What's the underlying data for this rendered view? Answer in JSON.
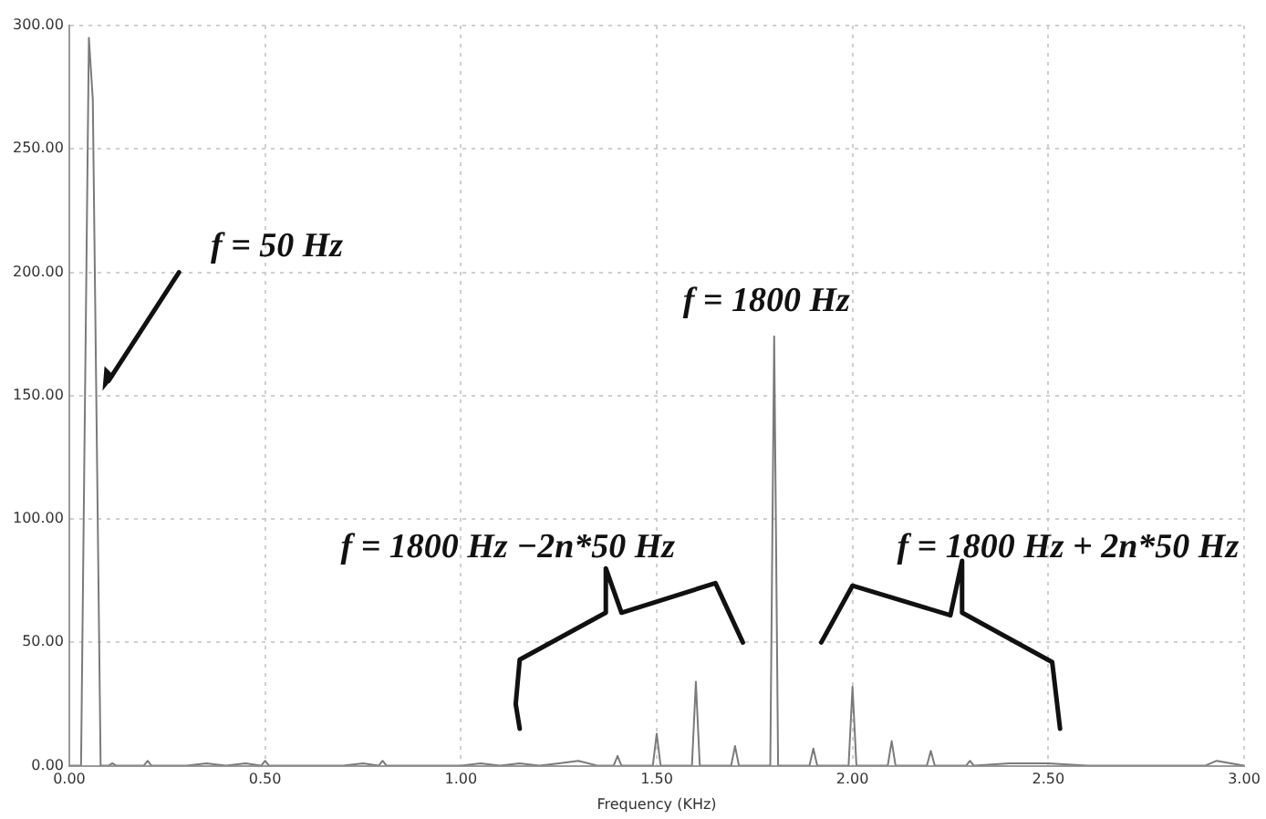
{
  "chart_data": {
    "type": "line",
    "xlabel": "Frequency (KHz)",
    "x": [
      0,
      0.03,
      0.05,
      0.06,
      0.08,
      0.1,
      0.11,
      0.12,
      0.19,
      0.2,
      0.21,
      0.3,
      0.35,
      0.4,
      0.45,
      0.49,
      0.5,
      0.51,
      0.6,
      0.7,
      0.75,
      0.79,
      0.8,
      0.81,
      0.85,
      0.9,
      1.0,
      1.05,
      1.1,
      1.15,
      1.2,
      1.25,
      1.3,
      1.35,
      1.39,
      1.4,
      1.41,
      1.44,
      1.49,
      1.5,
      1.51,
      1.55,
      1.59,
      1.6,
      1.61,
      1.65,
      1.69,
      1.7,
      1.71,
      1.77,
      1.79,
      1.8,
      1.81,
      1.83,
      1.87,
      1.89,
      1.9,
      1.91,
      1.96,
      1.99,
      2.0,
      2.01,
      2.06,
      2.09,
      2.1,
      2.11,
      2.16,
      2.19,
      2.2,
      2.21,
      2.29,
      2.3,
      2.31,
      2.4,
      2.5,
      2.6,
      2.7,
      2.8,
      2.9,
      2.93,
      3.0
    ],
    "series": [
      {
        "color": "#7a7a7a",
        "values": [
          0,
          0,
          295,
          270,
          0,
          0,
          1,
          0,
          0,
          2,
          0,
          0,
          1,
          0,
          1,
          0,
          2,
          0,
          0,
          0,
          1,
          0,
          2,
          0,
          0,
          0,
          0,
          1,
          0,
          1,
          0,
          1,
          2,
          0,
          0,
          4,
          0,
          0,
          0,
          13,
          0,
          0,
          0,
          34,
          0,
          0,
          0,
          8,
          0,
          0,
          0,
          174,
          0,
          0,
          0,
          0,
          7,
          0,
          0,
          0,
          32,
          0,
          0,
          0,
          10,
          0,
          0,
          0,
          6,
          0,
          0,
          2,
          0,
          1,
          1,
          0,
          0,
          0,
          0,
          2,
          0
        ]
      }
    ],
    "xlim": [
      0,
      3
    ],
    "ylim": [
      0,
      300
    ],
    "xticks": [
      {
        "value": 0,
        "label": "0.00"
      },
      {
        "value": 0.5,
        "label": "0.50"
      },
      {
        "value": 1,
        "label": "1.00"
      },
      {
        "value": 1.5,
        "label": "1.50"
      },
      {
        "value": 2,
        "label": "2.00"
      },
      {
        "value": 2.5,
        "label": "2.50"
      },
      {
        "value": 3,
        "label": "3.00"
      }
    ],
    "yticks": [
      {
        "value": 0,
        "label": "0.00"
      },
      {
        "value": 50,
        "label": "50.00"
      },
      {
        "value": 100,
        "label": "100.00"
      },
      {
        "value": 150,
        "label": "150.00"
      },
      {
        "value": 200,
        "label": "200.00"
      },
      {
        "value": 250,
        "label": "250.00"
      },
      {
        "value": 300,
        "label": "300.00"
      }
    ],
    "grid": true,
    "legend": false,
    "marker": "none",
    "line_style": "solid",
    "annotations": [
      "f = 50 Hz",
      "f = 1800 Hz",
      "f = 1800 Hz −2n*50 Hz",
      "f = 1800 Hz + 2n*50 Hz"
    ]
  }
}
